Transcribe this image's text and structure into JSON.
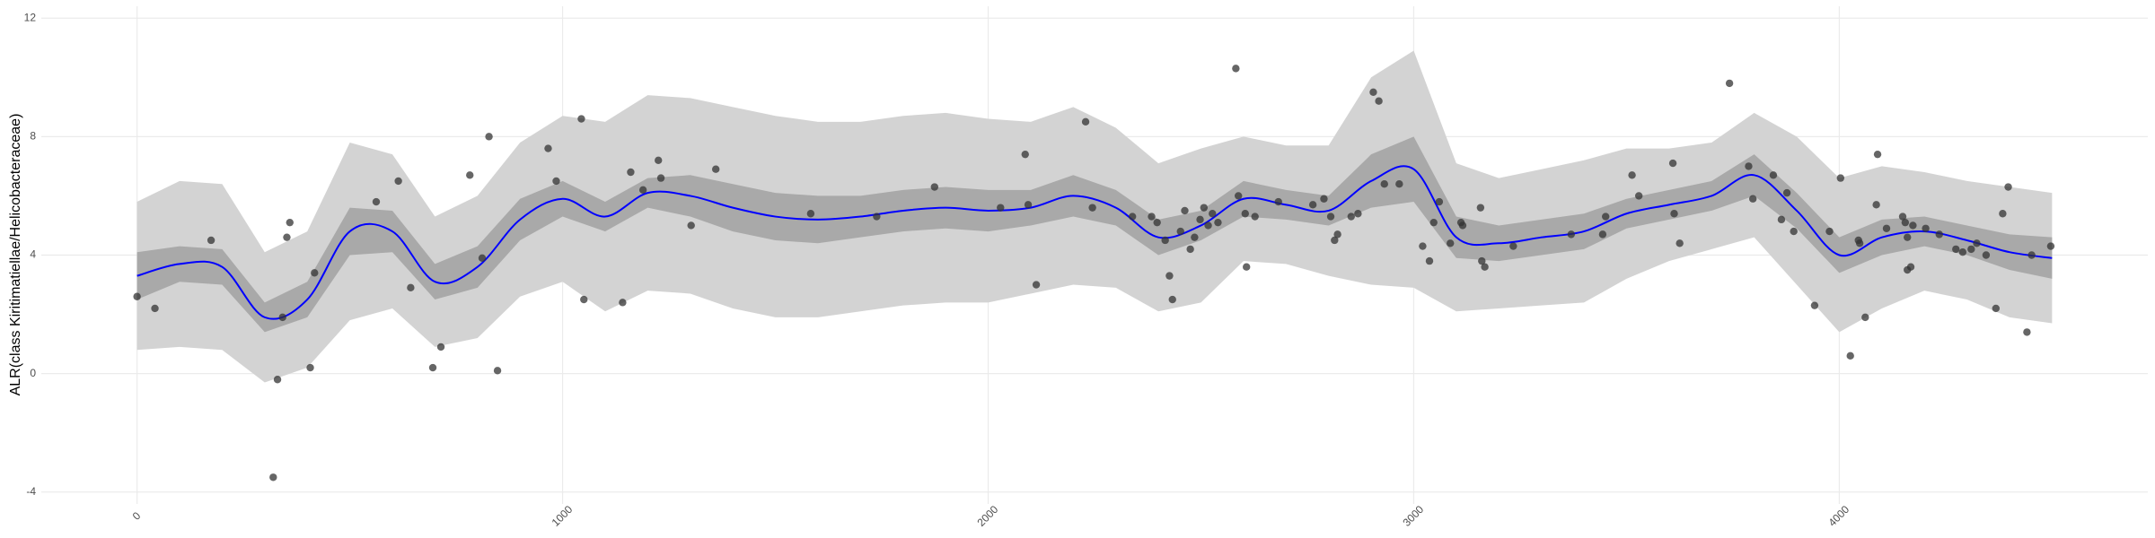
{
  "chart_data": {
    "type": "scatter",
    "ylabel": "ALR(class Kiritimatiellae/Helicobacteraceae)",
    "xlim": [
      -225,
      4725
    ],
    "ylim": [
      -4.4,
      12.4
    ],
    "xticks": [
      0,
      1000,
      2000,
      3000,
      4000
    ],
    "yticks": [
      -4,
      0,
      4,
      8,
      12
    ],
    "grid": true,
    "outer_band": {
      "color": "#d3d3d3",
      "lower": [
        0.8,
        0.9,
        0.8,
        -0.3,
        0.2,
        1.8,
        2.2,
        0.9,
        1.2,
        2.6,
        3.1,
        2.1,
        2.8,
        2.7,
        2.2,
        1.9,
        1.9,
        2.1,
        2.3,
        2.4,
        2.4,
        2.7,
        3.0,
        2.9,
        2.1,
        2.4,
        3.8,
        3.7,
        3.3,
        3.0,
        2.9,
        2.1,
        2.2,
        2.3,
        2.4,
        3.2,
        3.8,
        4.2,
        4.6,
        3.0,
        1.4,
        2.2,
        2.8,
        2.5,
        1.9,
        1.7
      ],
      "upper": [
        5.8,
        6.5,
        6.4,
        4.1,
        4.8,
        7.8,
        7.4,
        5.3,
        6.0,
        7.8,
        8.7,
        8.5,
        9.4,
        9.3,
        9.0,
        8.7,
        8.5,
        8.5,
        8.7,
        8.8,
        8.6,
        8.5,
        9.0,
        8.3,
        7.1,
        7.6,
        8.0,
        7.7,
        7.7,
        10.0,
        10.9,
        7.1,
        6.6,
        6.9,
        7.2,
        7.6,
        7.6,
        7.8,
        8.8,
        8.0,
        6.6,
        7.0,
        6.8,
        6.5,
        6.3,
        6.1
      ]
    },
    "inner_band": {
      "color": "#a9a9a9",
      "lower": [
        2.5,
        3.1,
        3.0,
        1.4,
        1.9,
        4.0,
        4.1,
        2.5,
        2.9,
        4.5,
        5.3,
        4.8,
        5.6,
        5.3,
        4.8,
        4.5,
        4.4,
        4.6,
        4.8,
        4.9,
        4.8,
        5.0,
        5.3,
        5.0,
        4.0,
        4.5,
        5.3,
        5.2,
        5.0,
        5.6,
        5.8,
        3.9,
        3.8,
        4.0,
        4.2,
        4.9,
        5.2,
        5.5,
        6.0,
        4.9,
        3.4,
        4.0,
        4.3,
        4.0,
        3.5,
        3.2
      ],
      "upper": [
        4.1,
        4.3,
        4.2,
        2.4,
        3.1,
        5.6,
        5.5,
        3.7,
        4.3,
        5.9,
        6.5,
        5.8,
        6.6,
        6.7,
        6.4,
        6.1,
        6.0,
        6.0,
        6.2,
        6.3,
        6.2,
        6.2,
        6.7,
        6.2,
        5.2,
        5.5,
        6.5,
        6.2,
        6.0,
        7.4,
        8.0,
        5.3,
        5.0,
        5.2,
        5.4,
        5.9,
        6.2,
        6.5,
        7.4,
        6.1,
        4.6,
        5.2,
        5.3,
        5.0,
        4.7,
        4.6
      ]
    },
    "smooth": {
      "color": "#0000ff",
      "x": [
        0,
        100,
        200,
        300,
        400,
        500,
        600,
        700,
        800,
        900,
        1000,
        1100,
        1200,
        1300,
        1400,
        1500,
        1600,
        1700,
        1800,
        1900,
        2000,
        2100,
        2200,
        2300,
        2400,
        2500,
        2600,
        2700,
        2800,
        2900,
        3000,
        3100,
        3200,
        3300,
        3400,
        3500,
        3600,
        3700,
        3800,
        3900,
        4000,
        4100,
        4200,
        4300,
        4400,
        4500
      ],
      "y": [
        3.3,
        3.7,
        3.6,
        1.9,
        2.5,
        4.8,
        4.8,
        3.1,
        3.6,
        5.2,
        5.9,
        5.3,
        6.1,
        6.0,
        5.6,
        5.3,
        5.2,
        5.3,
        5.5,
        5.6,
        5.5,
        5.6,
        6.0,
        5.6,
        4.6,
        5.0,
        5.9,
        5.7,
        5.5,
        6.5,
        6.9,
        4.6,
        4.4,
        4.6,
        4.8,
        5.4,
        5.7,
        6.0,
        6.7,
        5.5,
        4.0,
        4.6,
        4.8,
        4.5,
        4.1,
        3.9
      ]
    },
    "points": {
      "color": "#333333",
      "x": [
        0,
        42,
        174,
        320,
        330,
        342,
        352,
        359,
        407,
        417,
        562,
        614,
        643,
        695,
        714,
        782,
        811,
        827,
        847,
        966,
        985,
        1044,
        1050,
        1141,
        1160,
        1189,
        1225,
        1231,
        1302,
        1360,
        1583,
        1738,
        1874,
        2029,
        2087,
        2094,
        2113,
        2229,
        2245,
        2339,
        2384,
        2397,
        2416,
        2426,
        2433,
        2452,
        2462,
        2475,
        2485,
        2498,
        2507,
        2517,
        2527,
        2540,
        2582,
        2588,
        2604,
        2607,
        2627,
        2682,
        2763,
        2789,
        2805,
        2814,
        2821,
        2853,
        2869,
        2905,
        2918,
        2931,
        2966,
        3021,
        3037,
        3047,
        3060,
        3086,
        3111,
        3115,
        3157,
        3160,
        3167,
        3234,
        3370,
        3444,
        3451,
        3513,
        3529,
        3609,
        3612,
        3625,
        3742,
        3787,
        3797,
        3845,
        3864,
        3877,
        3893,
        3942,
        3977,
        4003,
        4026,
        4045,
        4048,
        4061,
        4087,
        4090,
        4111,
        4149,
        4155,
        4160,
        4160,
        4168,
        4173,
        4203,
        4235,
        4274,
        4290,
        4310,
        4323,
        4345,
        4368,
        4384,
        4397,
        4441,
        4452,
        4497
      ],
      "y": [
        2.6,
        2.2,
        4.5,
        -3.5,
        -0.2,
        1.9,
        4.6,
        5.1,
        0.2,
        3.4,
        5.8,
        6.5,
        2.9,
        0.2,
        0.9,
        6.7,
        3.9,
        8.0,
        0.1,
        7.6,
        6.5,
        8.6,
        2.5,
        2.4,
        6.8,
        6.2,
        7.2,
        6.6,
        5.0,
        6.9,
        5.4,
        5.3,
        6.3,
        5.6,
        7.4,
        5.7,
        3.0,
        8.5,
        5.6,
        5.3,
        5.3,
        5.1,
        4.5,
        3.3,
        2.5,
        4.8,
        5.5,
        4.2,
        4.6,
        5.2,
        5.6,
        5.0,
        5.4,
        5.1,
        10.3,
        6.0,
        5.4,
        3.6,
        5.3,
        5.8,
        5.7,
        5.9,
        5.3,
        4.5,
        4.7,
        5.3,
        5.4,
        9.5,
        9.2,
        6.4,
        6.4,
        4.3,
        3.8,
        5.1,
        5.8,
        4.4,
        5.1,
        5.0,
        5.6,
        3.8,
        3.6,
        4.3,
        4.7,
        4.7,
        5.3,
        6.7,
        6.0,
        7.1,
        5.4,
        4.4,
        9.8,
        7.0,
        5.9,
        6.7,
        5.2,
        6.1,
        4.8,
        2.3,
        4.8,
        6.6,
        0.6,
        4.5,
        4.4,
        1.9,
        5.7,
        7.4,
        4.9,
        5.3,
        5.1,
        4.6,
        3.5,
        3.6,
        5.0,
        4.9,
        4.7,
        4.2,
        4.1,
        4.2,
        4.4,
        4.0,
        2.2,
        5.4,
        6.3,
        1.4,
        4.0,
        4.3
      ]
    }
  }
}
